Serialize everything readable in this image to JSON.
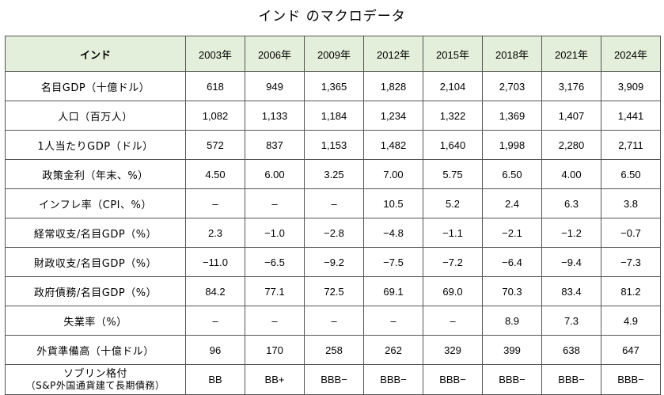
{
  "title": "インド のマクロデータ",
  "table": {
    "country": "インド",
    "years": [
      "2003年",
      "2006年",
      "2009年",
      "2012年",
      "2015年",
      "2018年",
      "2021年",
      "2024年"
    ],
    "rows": [
      {
        "label": "名目GDP（十億ドル）",
        "values": [
          "618",
          "949",
          "1,365",
          "1,828",
          "2,104",
          "2,703",
          "3,176",
          "3,909"
        ]
      },
      {
        "label": "人口（百万人）",
        "values": [
          "1,082",
          "1,133",
          "1,184",
          "1,234",
          "1,322",
          "1,369",
          "1,407",
          "1,441"
        ]
      },
      {
        "label": "1人当たりGDP（ドル）",
        "values": [
          "572",
          "837",
          "1,153",
          "1,482",
          "1,640",
          "1,998",
          "2,280",
          "2,711"
        ]
      },
      {
        "label": "政策金利（年末、%）",
        "values": [
          "4.50",
          "6.00",
          "3.25",
          "7.00",
          "5.75",
          "6.50",
          "4.00",
          "6.50"
        ]
      },
      {
        "label": "インフレ率（CPI、%）",
        "values": [
          "–",
          "–",
          "–",
          "10.5",
          "5.2",
          "2.4",
          "6.3",
          "3.8"
        ]
      },
      {
        "label": "経常収支/名目GDP（%）",
        "values": [
          "2.3",
          "−1.0",
          "−2.8",
          "−4.8",
          "−1.1",
          "−2.1",
          "−1.2",
          "−0.7"
        ]
      },
      {
        "label": "財政収支/名目GDP（%）",
        "values": [
          "−11.0",
          "−6.5",
          "−9.2",
          "−7.5",
          "−7.2",
          "−6.4",
          "−9.4",
          "−7.3"
        ]
      },
      {
        "label": "政府債務/名目GDP（%）",
        "values": [
          "84.2",
          "77.1",
          "72.5",
          "69.1",
          "69.0",
          "70.3",
          "83.4",
          "81.2"
        ]
      },
      {
        "label": "失業率（%）",
        "values": [
          "–",
          "–",
          "–",
          "–",
          "–",
          "8.9",
          "7.3",
          "4.9"
        ]
      },
      {
        "label": "外貨準備高（十億ドル）",
        "values": [
          "96",
          "170",
          "258",
          "262",
          "329",
          "399",
          "638",
          "647"
        ]
      }
    ],
    "rating_row": {
      "label_main": "ソブリン格付",
      "label_sub": "（S&P外国通貨建て長期債務）",
      "values": [
        "BB",
        "BB+",
        "BBB−",
        "BBB−",
        "BBB−",
        "BBB−",
        "BBB−",
        "BBB−"
      ]
    },
    "header_color": "#e3efda"
  }
}
